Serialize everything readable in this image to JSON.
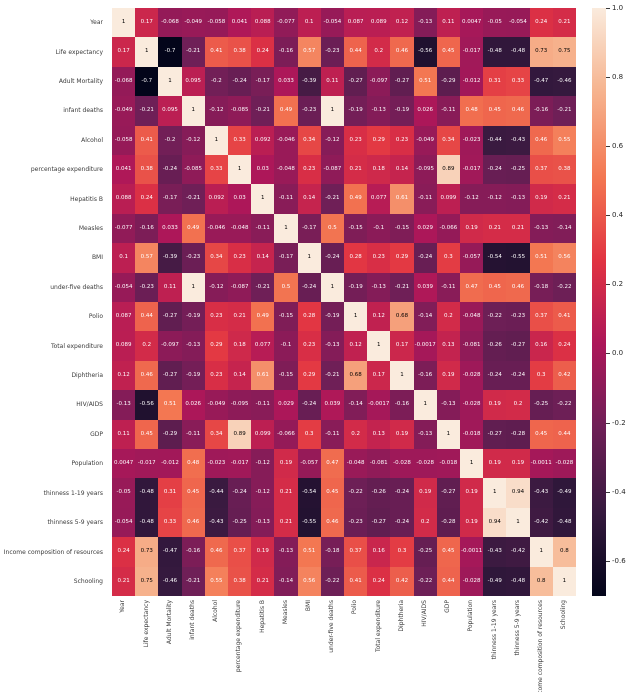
{
  "colors": {
    "background": "#ffffff",
    "tick_label": "#3b3b3b",
    "annotation_light": "#ffffff",
    "annotation_dark": "#000000"
  },
  "chart_data": {
    "type": "heatmap",
    "title": "",
    "xlabel": "",
    "ylabel": "",
    "annotation_format": ".2g",
    "grid": false,
    "legend_position": "colorbar-right",
    "colormap": "rocket",
    "colormap_anchors": [
      [
        0.0,
        "#03051A"
      ],
      [
        0.14,
        "#35193E"
      ],
      [
        0.29,
        "#701F57"
      ],
      [
        0.43,
        "#AD1759"
      ],
      [
        0.57,
        "#E13342"
      ],
      [
        0.71,
        "#F37651"
      ],
      [
        0.86,
        "#F6B48F"
      ],
      [
        1.0,
        "#FAEBDD"
      ]
    ],
    "vmin": -0.7,
    "vmax": 1.0,
    "colorbar_ticks": [
      1.0,
      0.8,
      0.6,
      0.4,
      0.2,
      0.0,
      -0.2,
      -0.4,
      -0.6
    ],
    "categories": [
      "Year",
      "Life expectancy",
      "Adult Mortality",
      "infant deaths",
      "Alcohol",
      "percentage expenditure",
      "Hepatitis B",
      "Measles",
      "BMI",
      "under-five deaths",
      "Polio",
      "Total expenditure",
      "Diphtheria",
      "HIV/AIDS",
      "GDP",
      "Population",
      "thinness  1-19 years",
      "thinness 5-9 years",
      "Income composition of resources",
      "Schooling"
    ],
    "matrix": [
      [
        1,
        0.17,
        -0.068,
        -0.049,
        -0.058,
        0.041,
        0.088,
        -0.077,
        0.1,
        -0.054,
        0.087,
        0.089,
        0.12,
        -0.13,
        0.11,
        0.0047,
        -0.05,
        -0.054,
        0.24,
        0.21
      ],
      [
        0.17,
        1,
        -0.7,
        -0.21,
        0.41,
        0.38,
        0.24,
        -0.16,
        0.57,
        -0.23,
        0.44,
        0.2,
        0.46,
        -0.56,
        0.45,
        -0.017,
        -0.48,
        -0.48,
        0.73,
        0.75
      ],
      [
        -0.068,
        -0.7,
        1,
        0.095,
        -0.2,
        -0.24,
        -0.17,
        0.033,
        -0.39,
        0.11,
        -0.27,
        -0.097,
        -0.27,
        0.51,
        -0.29,
        -0.012,
        0.31,
        0.33,
        -0.47,
        -0.46
      ],
      [
        -0.049,
        -0.21,
        0.095,
        1,
        -0.12,
        -0.085,
        -0.21,
        0.49,
        -0.23,
        1,
        -0.19,
        -0.13,
        -0.19,
        0.026,
        -0.11,
        0.48,
        0.45,
        0.46,
        -0.16,
        -0.21
      ],
      [
        -0.058,
        0.41,
        -0.2,
        -0.12,
        1,
        0.33,
        0.092,
        -0.046,
        0.34,
        -0.12,
        0.23,
        0.29,
        0.23,
        -0.049,
        0.34,
        -0.023,
        -0.44,
        -0.43,
        0.46,
        0.55
      ],
      [
        0.041,
        0.38,
        -0.24,
        -0.085,
        0.33,
        1,
        0.03,
        -0.048,
        0.23,
        -0.087,
        0.21,
        0.18,
        0.14,
        -0.095,
        0.89,
        -0.017,
        -0.24,
        -0.25,
        0.37,
        0.38
      ],
      [
        0.088,
        0.24,
        -0.17,
        -0.21,
        0.092,
        0.03,
        1,
        -0.11,
        0.14,
        -0.21,
        0.49,
        0.077,
        0.61,
        -0.11,
        0.099,
        -0.12,
        -0.12,
        -0.13,
        0.19,
        0.21
      ],
      [
        -0.077,
        -0.16,
        0.033,
        0.49,
        -0.046,
        -0.048,
        -0.11,
        1,
        -0.17,
        0.5,
        -0.15,
        -0.1,
        -0.15,
        0.029,
        -0.066,
        0.19,
        0.21,
        0.21,
        -0.13,
        -0.14
      ],
      [
        0.1,
        0.57,
        -0.39,
        -0.23,
        0.34,
        0.23,
        0.14,
        -0.17,
        1,
        -0.24,
        0.28,
        0.23,
        0.29,
        -0.24,
        0.3,
        -0.057,
        -0.54,
        -0.55,
        0.51,
        0.56
      ],
      [
        -0.054,
        -0.23,
        0.11,
        1,
        -0.12,
        -0.087,
        -0.21,
        0.5,
        -0.24,
        1,
        -0.19,
        -0.13,
        -0.21,
        0.039,
        -0.11,
        0.47,
        0.45,
        0.46,
        -0.18,
        -0.22
      ],
      [
        0.087,
        0.44,
        -0.27,
        -0.19,
        0.23,
        0.21,
        0.49,
        -0.15,
        0.28,
        -0.19,
        1,
        0.12,
        0.68,
        -0.14,
        0.2,
        -0.048,
        -0.22,
        -0.23,
        0.37,
        0.41
      ],
      [
        0.089,
        0.2,
        -0.097,
        -0.13,
        0.29,
        0.18,
        0.077,
        -0.1,
        0.23,
        -0.13,
        0.12,
        1,
        0.17,
        -0.0017,
        0.13,
        -0.081,
        -0.26,
        -0.27,
        0.16,
        0.24
      ],
      [
        0.12,
        0.46,
        -0.27,
        -0.19,
        0.23,
        0.14,
        0.61,
        -0.15,
        0.29,
        -0.21,
        0.68,
        0.17,
        1,
        -0.16,
        0.19,
        -0.028,
        -0.24,
        -0.24,
        0.3,
        0.42
      ],
      [
        -0.13,
        -0.56,
        0.51,
        0.026,
        -0.049,
        -0.095,
        -0.11,
        0.029,
        -0.24,
        0.039,
        -0.14,
        -0.0017,
        -0.16,
        1,
        -0.13,
        -0.028,
        0.19,
        0.2,
        -0.25,
        -0.22
      ],
      [
        0.11,
        0.45,
        -0.29,
        -0.11,
        0.34,
        0.89,
        0.099,
        -0.066,
        0.3,
        -0.11,
        0.2,
        0.13,
        0.19,
        -0.13,
        1,
        -0.018,
        -0.27,
        -0.28,
        0.45,
        0.44
      ],
      [
        0.0047,
        -0.017,
        -0.012,
        0.48,
        -0.023,
        -0.017,
        -0.12,
        0.19,
        -0.057,
        0.47,
        -0.048,
        -0.081,
        -0.028,
        -0.028,
        -0.018,
        1,
        0.19,
        0.19,
        -0.0011,
        -0.028
      ],
      [
        -0.05,
        -0.48,
        0.31,
        0.45,
        -0.44,
        -0.24,
        -0.12,
        0.21,
        -0.54,
        0.45,
        -0.22,
        -0.26,
        -0.24,
        0.19,
        -0.27,
        0.19,
        1,
        0.94,
        -0.43,
        -0.49
      ],
      [
        -0.054,
        -0.48,
        0.33,
        0.46,
        -0.43,
        -0.25,
        -0.13,
        0.21,
        -0.55,
        0.46,
        -0.23,
        -0.27,
        -0.24,
        0.2,
        -0.28,
        0.19,
        0.94,
        1,
        -0.42,
        -0.48
      ],
      [
        0.24,
        0.73,
        -0.47,
        -0.16,
        0.46,
        0.37,
        0.19,
        -0.13,
        0.51,
        -0.18,
        0.37,
        0.16,
        0.3,
        -0.25,
        0.45,
        -0.0011,
        -0.43,
        -0.42,
        1,
        0.8
      ],
      [
        0.21,
        0.75,
        -0.46,
        -0.21,
        0.55,
        0.38,
        0.21,
        -0.14,
        0.56,
        -0.22,
        0.41,
        0.24,
        0.42,
        -0.22,
        0.44,
        -0.028,
        -0.49,
        -0.48,
        0.8,
        1
      ]
    ]
  }
}
